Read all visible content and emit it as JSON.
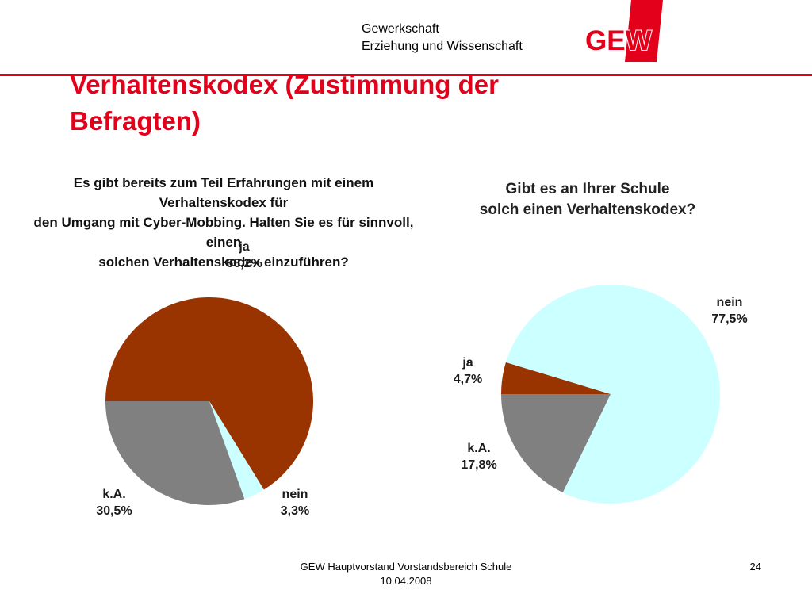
{
  "header": {
    "org_line1": "Gewerkschaft",
    "org_line2": "Erziehung und Wissenschaft",
    "logo_text": "GEW",
    "brand_color": "#e3001b"
  },
  "slide_title": "Verhaltenskodex (Zustimmung der Befragten)",
  "chart_data": [
    {
      "type": "pie",
      "title": "Es gibt bereits zum Teil Erfahrungen mit einem Verhaltenskodex für den Umgang mit Cyber-Mobbing. Halten Sie es für sinnvoll, einen solchen Verhaltenskodex einzuführen?",
      "title_lines": [
        "Es gibt bereits zum Teil Erfahrungen mit einem Verhaltenskodex für",
        "den Umgang mit Cyber-Mobbing. Halten Sie es für sinnvoll, einen",
        "solchen Verhaltenskodex einzuführen?"
      ],
      "slices": [
        {
          "label": "ja",
          "value": 66.2,
          "value_label": "66,2%",
          "color": "#993300"
        },
        {
          "label": "nein",
          "value": 3.3,
          "value_label": "3,3%",
          "color": "#ccffff"
        },
        {
          "label": "k.A.",
          "value": 30.5,
          "value_label": "30,5%",
          "color": "#808080"
        }
      ]
    },
    {
      "type": "pie",
      "title": "Gibt es an Ihrer Schule solch einen Verhaltenskodex?",
      "title_lines": [
        "Gibt es an Ihrer Schule",
        "solch einen Verhaltenskodex?"
      ],
      "slices": [
        {
          "label": "ja",
          "value": 4.7,
          "value_label": "4,7%",
          "color": "#993300"
        },
        {
          "label": "nein",
          "value": 77.5,
          "value_label": "77,5%",
          "color": "#ccffff"
        },
        {
          "label": "k.A.",
          "value": 17.8,
          "value_label": "17,8%",
          "color": "#808080"
        }
      ]
    }
  ],
  "footer": {
    "line1": "GEW Hauptvorstand Vorstandsbereich Schule",
    "line2": "10.04.2008",
    "page_number": "24"
  }
}
